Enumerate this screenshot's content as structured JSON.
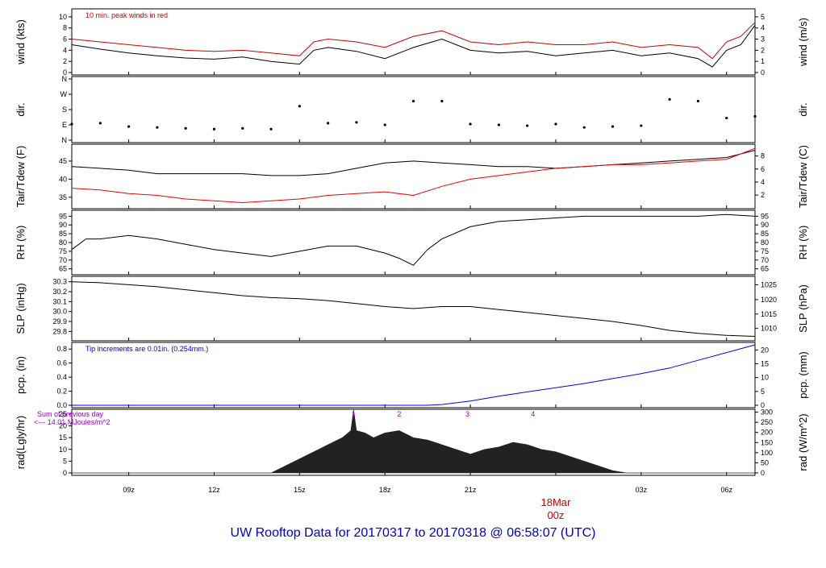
{
  "footer": {
    "title_prefix": "UW Rooftop Data for 20170317  to  20170318 @ 06:58:07  (UTC)",
    "color": "#0000cc"
  },
  "x_axis": {
    "ticks": [
      {
        "label": "09z",
        "hour": 9
      },
      {
        "label": "12z",
        "hour": 12
      },
      {
        "label": "15z",
        "hour": 15
      },
      {
        "label": "18z",
        "hour": 18
      },
      {
        "label": "21z",
        "hour": 21
      },
      {
        "label": "00z",
        "hour": 24
      },
      {
        "label": "03z",
        "hour": 27
      },
      {
        "label": "06z",
        "hour": 30
      }
    ],
    "date_label": "18Mar",
    "date_label_color": "#cc0000",
    "range_hours": [
      7.0,
      31.0
    ]
  },
  "chart_data": [
    {
      "id": "wind",
      "type": "line",
      "ylabel_left": "wind (kts)",
      "ylabel_right": "wind (m/s)",
      "ylim": [
        0,
        11
      ],
      "ticks_left": [
        0,
        2,
        4,
        6,
        8,
        10
      ],
      "ticks_right": [
        "0",
        "1",
        "2",
        "3",
        "4",
        "5"
      ],
      "annotation": "10 min. peak winds in red",
      "annotation_color": "#cc0000",
      "x_hours": [
        7.0,
        8.0,
        9.0,
        10.0,
        11.0,
        12.0,
        13.0,
        14.0,
        15.0,
        15.5,
        16.0,
        17.0,
        18.0,
        19.0,
        20.0,
        21.0,
        22.0,
        23.0,
        24.0,
        25.0,
        26.0,
        27.0,
        28.0,
        29.0,
        29.5,
        30.0,
        30.5,
        31.0
      ],
      "series": [
        {
          "color": "#000000",
          "values": [
            5.0,
            4.2,
            3.5,
            3.0,
            2.6,
            2.4,
            2.8,
            2.0,
            1.5,
            4.0,
            4.5,
            3.8,
            2.5,
            4.5,
            6.0,
            4.0,
            3.5,
            3.8,
            3.0,
            3.5,
            4.0,
            3.0,
            3.5,
            2.5,
            1.0,
            4.0,
            5.0,
            8.5
          ]
        },
        {
          "color": "#cc0000",
          "values": [
            6.0,
            5.5,
            5.0,
            4.5,
            4.0,
            3.8,
            4.0,
            3.5,
            3.0,
            5.5,
            6.0,
            5.5,
            4.5,
            6.5,
            7.5,
            5.5,
            5.0,
            5.5,
            5.0,
            5.0,
            5.5,
            4.5,
            5.0,
            4.5,
            2.5,
            5.5,
            6.5,
            9.0
          ]
        }
      ]
    },
    {
      "id": "dir",
      "type": "scatter",
      "ylabel_left": "dir.",
      "ylabel_right": "dir.",
      "ylim": [
        0,
        360
      ],
      "ticks_left": [
        {
          "value": 0,
          "label": "N"
        },
        {
          "value": 90,
          "label": "E"
        },
        {
          "value": 180,
          "label": "S"
        },
        {
          "value": 270,
          "label": "W"
        },
        {
          "value": 360,
          "label": "N"
        }
      ],
      "x_hours": [
        7.0,
        8.0,
        9.0,
        10.0,
        11.0,
        12.0,
        13.0,
        14.0,
        15.0,
        16.0,
        17.0,
        18.0,
        19.0,
        20.0,
        21.0,
        22.0,
        23.0,
        24.0,
        25.0,
        26.0,
        27.0,
        28.0,
        29.0,
        30.0,
        31.0
      ],
      "values": [
        95,
        100,
        80,
        75,
        70,
        65,
        70,
        65,
        200,
        100,
        105,
        90,
        230,
        230,
        95,
        90,
        85,
        95,
        75,
        80,
        85,
        240,
        230,
        130,
        140
      ]
    },
    {
      "id": "temp",
      "type": "line",
      "ylabel_left": "Tair/Tdew (F)",
      "ylabel_right": "Tair/Tdew (C)",
      "ylim": [
        32.5,
        49
      ],
      "ticks_left": [
        35,
        40,
        45
      ],
      "ticks_right": [
        {
          "value": 35.6,
          "label": "2"
        },
        {
          "value": 39.2,
          "label": "4"
        },
        {
          "value": 42.8,
          "label": "6"
        },
        {
          "value": 46.4,
          "label": "8"
        }
      ],
      "x_hours": [
        7.0,
        8.0,
        9.0,
        10.0,
        11.0,
        12.0,
        13.0,
        14.0,
        15.0,
        16.0,
        17.0,
        18.0,
        19.0,
        20.0,
        21.0,
        22.0,
        23.0,
        24.0,
        25.0,
        26.0,
        27.0,
        28.0,
        29.0,
        30.0,
        31.0
      ],
      "series": [
        {
          "name": "Tair",
          "color": "#000000",
          "values": [
            43.5,
            43.0,
            42.5,
            41.5,
            41.5,
            41.5,
            41.5,
            41.0,
            41.0,
            41.5,
            43.0,
            44.5,
            45.0,
            44.5,
            44.0,
            43.5,
            43.5,
            43.0,
            43.5,
            44.0,
            44.5,
            45.0,
            45.5,
            46.0,
            48.0
          ]
        },
        {
          "name": "Tdew",
          "color": "#ee0000",
          "values": [
            37.5,
            37.0,
            36.0,
            35.5,
            34.5,
            34.0,
            33.5,
            34.0,
            34.5,
            35.5,
            36.0,
            36.5,
            35.5,
            38.0,
            40.0,
            41.0,
            42.0,
            43.0,
            43.5,
            44.0,
            44.0,
            44.5,
            45.0,
            45.5,
            48.5
          ]
        }
      ]
    },
    {
      "id": "rh",
      "type": "line",
      "ylabel_left": "RH (%)",
      "ylabel_right": "RH (%)",
      "ylim": [
        63,
        97
      ],
      "ticks_left": [
        65,
        70,
        75,
        80,
        85,
        90,
        95
      ],
      "ticks_right": [
        65,
        70,
        75,
        80,
        85,
        90,
        95
      ],
      "x_hours": [
        7.0,
        7.5,
        8.0,
        9.0,
        10.0,
        11.0,
        12.0,
        13.0,
        14.0,
        15.0,
        16.0,
        17.0,
        18.0,
        18.5,
        19.0,
        19.5,
        20.0,
        21.0,
        22.0,
        23.0,
        24.0,
        25.0,
        26.0,
        27.0,
        28.0,
        29.0,
        30.0,
        31.0
      ],
      "series": [
        {
          "color": "#000000",
          "values": [
            76,
            82,
            82,
            84,
            82,
            79,
            76,
            74,
            72,
            75,
            78,
            78,
            74,
            71,
            67,
            76,
            82,
            89,
            92,
            93,
            94,
            95,
            95,
            95,
            95,
            95,
            96,
            95
          ]
        }
      ]
    },
    {
      "id": "slp",
      "type": "line",
      "ylabel_left": "SLP (inHg)",
      "ylabel_right": "SLP (hPa)",
      "ylim": [
        29.73,
        30.33
      ],
      "ticks_left": [
        "29.8",
        "29.9",
        "30.0",
        "30.1",
        "30.2",
        "30.3"
      ],
      "ticks_left_values": [
        29.8,
        29.9,
        30.0,
        30.1,
        30.2,
        30.3
      ],
      "ticks_right": [
        {
          "value": 29.83,
          "label": "1010"
        },
        {
          "value": 29.975,
          "label": "1015"
        },
        {
          "value": 30.12,
          "label": "1020"
        },
        {
          "value": 30.27,
          "label": "1025"
        }
      ],
      "x_hours": [
        7.0,
        8.0,
        9.0,
        10.0,
        11.0,
        12.0,
        13.0,
        14.0,
        15.0,
        16.0,
        17.0,
        18.0,
        19.0,
        20.0,
        21.0,
        22.0,
        23.0,
        24.0,
        25.0,
        26.0,
        27.0,
        28.0,
        29.0,
        30.0,
        31.0
      ],
      "series": [
        {
          "color": "#000000",
          "values": [
            30.3,
            30.29,
            30.27,
            30.25,
            30.22,
            30.19,
            30.16,
            30.14,
            30.13,
            30.11,
            30.08,
            30.05,
            30.03,
            30.05,
            30.05,
            30.02,
            29.99,
            29.96,
            29.93,
            29.9,
            29.86,
            29.81,
            29.78,
            29.76,
            29.75
          ]
        }
      ]
    },
    {
      "id": "pcp",
      "type": "line",
      "ylabel_left": "pcp. (in)",
      "ylabel_right": "pcp. (mm)",
      "ylim": [
        0,
        0.86
      ],
      "ticks_left": [
        "0.0",
        "0.2",
        "0.4",
        "0.6",
        "0.8"
      ],
      "ticks_left_values": [
        0,
        0.2,
        0.4,
        0.6,
        0.8
      ],
      "ticks_right": [
        {
          "value": 0,
          "label": "0"
        },
        {
          "value": 0.197,
          "label": "5"
        },
        {
          "value": 0.394,
          "label": "10"
        },
        {
          "value": 0.591,
          "label": "15"
        },
        {
          "value": 0.787,
          "label": "20"
        }
      ],
      "annotation": "Tip increments are 0.01in. (0.254mm.)",
      "annotation_color": "#0000cc",
      "x_hours": [
        7.0,
        19.5,
        20.0,
        21.0,
        22.0,
        23.0,
        24.0,
        25.0,
        26.0,
        27.0,
        28.0,
        29.0,
        30.0,
        31.0
      ],
      "series": [
        {
          "color": "#0000ff",
          "values": [
            0,
            0,
            0.01,
            0.06,
            0.13,
            0.19,
            0.25,
            0.31,
            0.38,
            0.45,
            0.53,
            0.64,
            0.75,
            0.86
          ]
        }
      ]
    },
    {
      "id": "rad",
      "type": "area",
      "ylabel_left": "rad(Lgly/hr)",
      "ylabel_right": "rad (W/m^2)",
      "ylim": [
        0,
        26
      ],
      "ticks_left": [
        0,
        5,
        10,
        15,
        20,
        25
      ],
      "ticks_right": [
        {
          "value": 0,
          "label": "0"
        },
        {
          "value": 4.3,
          "label": "50"
        },
        {
          "value": 8.6,
          "label": "100"
        },
        {
          "value": 12.9,
          "label": "150"
        },
        {
          "value": 17.2,
          "label": "200"
        },
        {
          "value": 21.5,
          "label": "250"
        },
        {
          "value": 25.8,
          "label": "300"
        }
      ],
      "annotation": [
        "Sum of previous day",
        "<--- 14.01 MJoules/m^2"
      ],
      "annotation_color": "#9900cc",
      "markers": [
        {
          "hour": 16.9,
          "label": "1"
        },
        {
          "hour": 18.5,
          "label": "2"
        },
        {
          "hour": 20.9,
          "label": "3"
        },
        {
          "hour": 23.2,
          "label": "4"
        }
      ],
      "marker_color": "#9900cc",
      "x_hours": [
        7.0,
        14.0,
        14.5,
        15.0,
        15.5,
        16.0,
        16.5,
        16.8,
        16.9,
        17.0,
        17.3,
        17.6,
        18.0,
        18.5,
        19.0,
        19.5,
        20.0,
        20.5,
        21.0,
        21.5,
        22.0,
        22.5,
        23.0,
        23.5,
        24.0,
        24.5,
        25.0,
        25.5,
        26.0,
        26.5,
        31.0
      ],
      "series": [
        {
          "color": "#222222",
          "values": [
            0,
            0,
            3,
            6,
            9,
            12,
            15,
            18,
            27,
            18,
            17,
            15,
            17,
            18,
            15,
            14,
            12,
            10,
            8,
            10,
            11,
            13,
            12,
            10,
            9,
            7,
            5,
            3,
            1,
            0,
            0
          ]
        }
      ]
    }
  ]
}
